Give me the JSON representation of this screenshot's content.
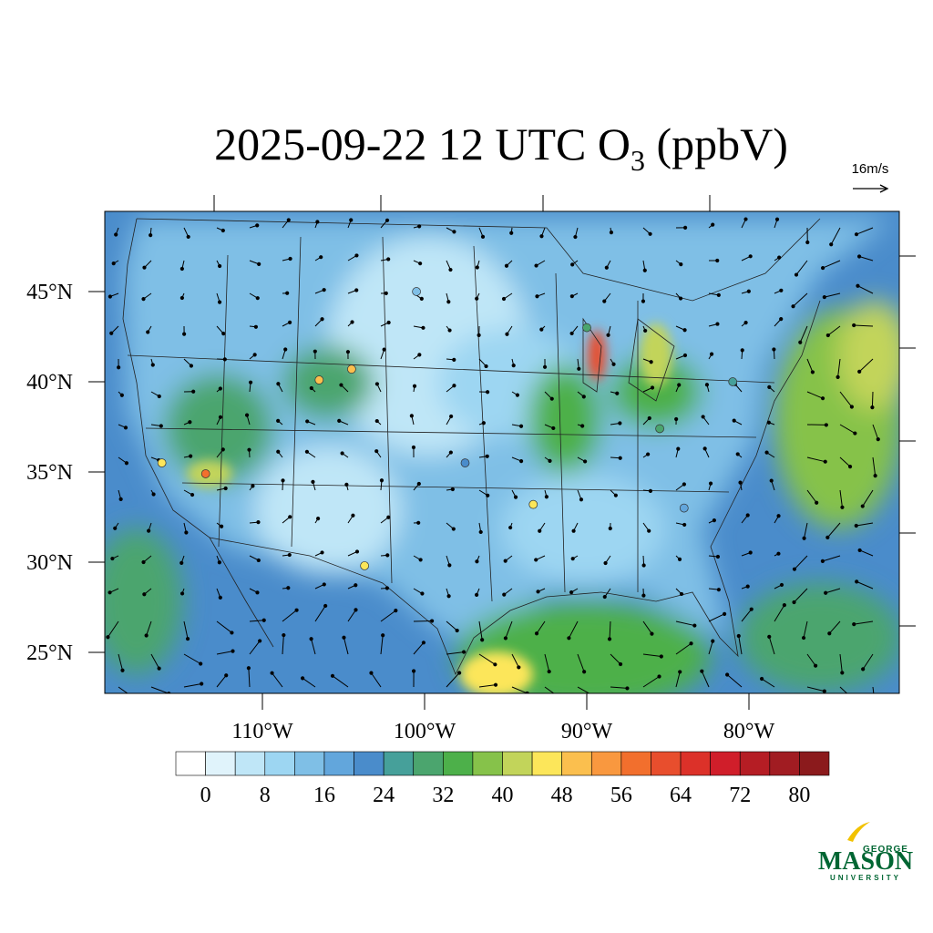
{
  "title_parts": [
    "2025-09-22 12 UTC O",
    "3",
    " (ppbV)"
  ],
  "wind_reference": "16m/s",
  "map": {
    "lon_ticks": [
      {
        "value": -110,
        "label": "110°W"
      },
      {
        "value": -100,
        "label": "100°W"
      },
      {
        "value": -90,
        "label": "90°W"
      },
      {
        "value": -80,
        "label": "80°W"
      }
    ],
    "lat_ticks": [
      {
        "value": 45,
        "label": "45°N"
      },
      {
        "value": 40,
        "label": "40°N"
      },
      {
        "value": 35,
        "label": "35°N"
      },
      {
        "value": 30,
        "label": "30°N"
      },
      {
        "value": 25,
        "label": "25°N"
      }
    ],
    "stations": [
      {
        "lon": -113.5,
        "lat": 34.9,
        "value": 58
      },
      {
        "lon": -104.5,
        "lat": 40.7,
        "value": 50
      },
      {
        "lon": -106.5,
        "lat": 40.1,
        "value": 48
      },
      {
        "lon": -103.7,
        "lat": 29.8,
        "value": 46
      },
      {
        "lon": -116.2,
        "lat": 35.5,
        "value": 44
      },
      {
        "lon": -93.3,
        "lat": 33.2,
        "value": 44
      },
      {
        "lon": -85.5,
        "lat": 37.4,
        "value": 30
      },
      {
        "lon": -97.5,
        "lat": 35.5,
        "value": 20
      },
      {
        "lon": -81.0,
        "lat": 40.0,
        "value": 24
      },
      {
        "lon": -90.0,
        "lat": 43.0,
        "value": 28
      },
      {
        "lon": -100.5,
        "lat": 45.0,
        "value": 12
      },
      {
        "lon": -84.0,
        "lat": 33.0,
        "value": 16
      }
    ]
  },
  "colorbar": {
    "range": [
      -4,
      84
    ],
    "ticks": [
      0,
      8,
      16,
      24,
      32,
      40,
      48,
      56,
      64,
      72,
      80
    ],
    "colors": [
      "#ffffff",
      "#e0f3fb",
      "#bfe6f7",
      "#9dd6f2",
      "#7fbfe6",
      "#62a6dc",
      "#4a8ccb",
      "#46a09a",
      "#4ba56e",
      "#4db04a",
      "#86c24a",
      "#c2d45a",
      "#fce65a",
      "#fbbf4e",
      "#f9983f",
      "#f26f2d",
      "#e84e2d",
      "#dc3129",
      "#d01e2a",
      "#b51d24",
      "#a11c22",
      "#8b1a1c"
    ]
  },
  "logo": {
    "top": "GEORGE",
    "main": "MASON",
    "bottom": "UNIVERSITY"
  }
}
